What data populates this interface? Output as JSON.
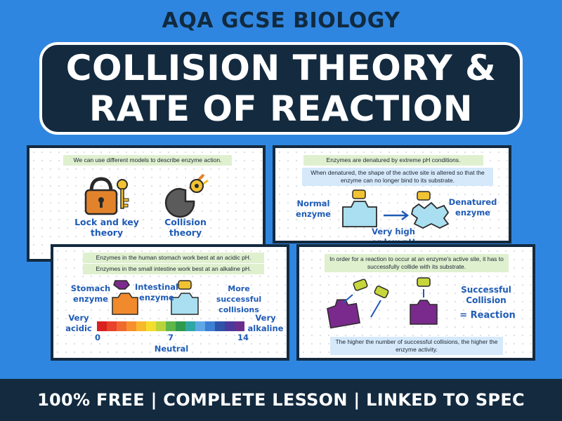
{
  "header": {
    "subject_label": "AQA GCSE BIOLOGY",
    "title_line_1": "COLLISION THEORY &",
    "title_line_2": "RATE OF REACTION"
  },
  "panels": {
    "models": {
      "note": "We can use different models to describe enzyme action.",
      "lock_label": "Lock and key theory",
      "collision_label": "Collision theory"
    },
    "denatured": {
      "note_1": "Enzymes are denatured by extreme pH conditions.",
      "note_2": "When denatured, the shape of the active site is altered so that the enzyme can no longer bind to its substrate.",
      "normal_label": "Normal enzyme",
      "denatured_label": "Denatured enzyme",
      "ph_label": "Very high or low pH"
    },
    "ph": {
      "note_1": "Enzymes in the human stomach work best at an acidic pH.",
      "note_2": "Enzymes in the small intestine work best at an alkaline pH.",
      "stomach_label": "Stomach enzyme",
      "intestinal_label": "Intestinal enzyme",
      "collisions_label": "More successful collisions",
      "acidic_label": "Very acidic",
      "alkaline_label": "Very alkaline",
      "tick_0": "0",
      "tick_7": "7",
      "tick_14": "14",
      "neutral_label": "Neutral",
      "scale_colors": [
        "#d7221f",
        "#e8432b",
        "#f06a2f",
        "#f7902f",
        "#f8b82c",
        "#f4dd2c",
        "#b9d43a",
        "#5fb64a",
        "#2f9a4d",
        "#2ea7a5",
        "#5fa8e6",
        "#3d7fd4",
        "#2e53a8",
        "#4b3a9c",
        "#6a2f8c"
      ]
    },
    "reaction": {
      "note_1": "In order for a reaction to occur at an enzyme's active site, it has to successfully collide with its substrate.",
      "note_2": "The higher the number of successful collisions, the higher the enzyme activity.",
      "successful_label": "Successful Collision",
      "reaction_label": "= Reaction"
    }
  },
  "footer": {
    "text": "100% FREE  |  COMPLETE LESSON  |  LINKED TO SPEC"
  }
}
